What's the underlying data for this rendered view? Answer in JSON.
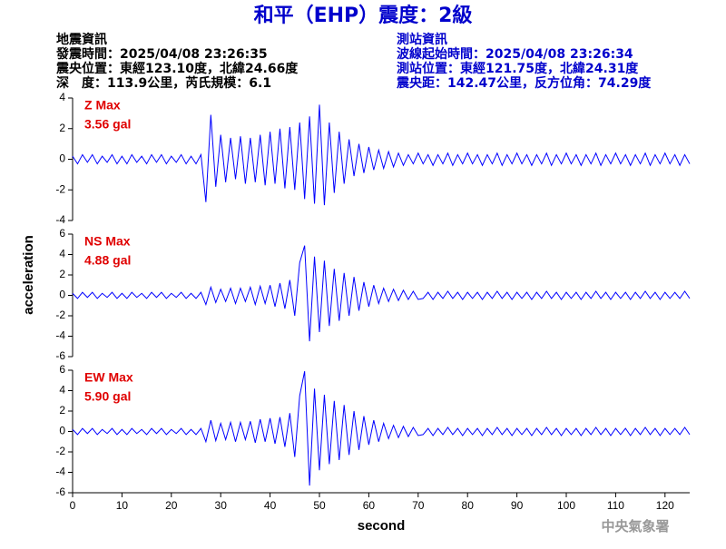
{
  "title": "和平（EHP）震度：2級",
  "info_left": [
    "地震資訊",
    "發震時間：2025/04/08 23:26:35",
    "震央位置：東經123.10度，北緯24.66度",
    "深　度：113.9公里，芮氏規模：6.1"
  ],
  "info_right": [
    "測站資訊",
    "波線起始時間：2025/04/08 23:26:34",
    "測站位置：東經121.75度，北緯24.31度",
    "震央距：142.47公里，反方位角：74.29度"
  ],
  "ylabel": "acceleration",
  "footer": "中央氣象署",
  "chart_data": [
    {
      "type": "line",
      "annotations": [
        "Z Max",
        "3.56 gal"
      ],
      "color": "#0000ff",
      "annotation_color": "#e00000",
      "xlim": [
        0,
        125
      ],
      "ylim": [
        -4,
        4
      ],
      "yticks": [
        -4,
        -2,
        0,
        2,
        4
      ],
      "x": [
        0,
        1,
        2,
        3,
        4,
        5,
        6,
        7,
        8,
        9,
        10,
        11,
        12,
        13,
        14,
        15,
        16,
        17,
        18,
        19,
        20,
        21,
        22,
        23,
        24,
        25,
        26,
        27,
        28,
        29,
        30,
        31,
        32,
        33,
        34,
        35,
        36,
        37,
        38,
        39,
        40,
        41,
        42,
        43,
        44,
        45,
        46,
        47,
        48,
        49,
        50,
        51,
        52,
        53,
        54,
        55,
        56,
        57,
        58,
        59,
        60,
        61,
        62,
        63,
        64,
        65,
        66,
        67,
        68,
        69,
        70,
        71,
        72,
        73,
        74,
        75,
        76,
        77,
        78,
        79,
        80,
        81,
        82,
        83,
        84,
        85,
        86,
        87,
        88,
        89,
        90,
        91,
        92,
        93,
        94,
        95,
        96,
        97,
        98,
        99,
        100,
        101,
        102,
        103,
        104,
        105,
        106,
        107,
        108,
        109,
        110,
        111,
        112,
        113,
        114,
        115,
        116,
        117,
        118,
        119,
        120,
        121,
        122,
        123,
        124,
        125
      ],
      "values": [
        0.2,
        -0.3,
        0.3,
        -0.2,
        0.3,
        -0.3,
        0.2,
        -0.2,
        0.3,
        -0.3,
        0.2,
        -0.3,
        0.3,
        -0.2,
        0.2,
        -0.3,
        0.3,
        -0.2,
        0.3,
        -0.3,
        0.2,
        -0.2,
        0.3,
        -0.3,
        0.2,
        -0.3,
        0.3,
        -2.8,
        2.9,
        -1.8,
        1.6,
        -1.5,
        1.4,
        -1.3,
        1.5,
        -1.6,
        1.4,
        -1.5,
        1.6,
        -1.7,
        1.8,
        -1.6,
        2.0,
        -1.9,
        2.1,
        -2.0,
        2.4,
        -2.6,
        2.8,
        -2.9,
        3.56,
        -3.0,
        2.4,
        -2.2,
        1.8,
        -1.6,
        1.3,
        -1.1,
        1.0,
        -0.9,
        0.8,
        -0.7,
        0.6,
        -0.6,
        0.5,
        -0.5,
        0.4,
        -0.4,
        0.3,
        -0.3,
        0.4,
        -0.3,
        0.3,
        -0.4,
        0.3,
        -0.3,
        0.4,
        -0.4,
        0.3,
        -0.3,
        0.4,
        -0.3,
        0.3,
        -0.4,
        0.3,
        -0.3,
        0.4,
        -0.4,
        0.3,
        -0.3,
        0.4,
        -0.3,
        0.3,
        -0.4,
        0.3,
        -0.3,
        0.4,
        -0.4,
        0.3,
        -0.3,
        0.4,
        -0.3,
        0.3,
        -0.4,
        0.3,
        -0.3,
        0.4,
        -0.4,
        0.3,
        -0.3,
        0.4,
        -0.3,
        0.3,
        -0.4,
        0.3,
        -0.3,
        0.4,
        -0.4,
        0.3,
        -0.3,
        0.4,
        -0.3,
        0.3,
        -0.4,
        0.3,
        -0.3
      ]
    },
    {
      "type": "line",
      "annotations": [
        "NS Max",
        "4.88 gal"
      ],
      "color": "#0000ff",
      "annotation_color": "#e00000",
      "xlim": [
        0,
        125
      ],
      "ylim": [
        -6,
        6
      ],
      "yticks": [
        -6,
        -4,
        -2,
        0,
        2,
        4,
        6
      ],
      "x": [
        0,
        1,
        2,
        3,
        4,
        5,
        6,
        7,
        8,
        9,
        10,
        11,
        12,
        13,
        14,
        15,
        16,
        17,
        18,
        19,
        20,
        21,
        22,
        23,
        24,
        25,
        26,
        27,
        28,
        29,
        30,
        31,
        32,
        33,
        34,
        35,
        36,
        37,
        38,
        39,
        40,
        41,
        42,
        43,
        44,
        45,
        46,
        47,
        48,
        49,
        50,
        51,
        52,
        53,
        54,
        55,
        56,
        57,
        58,
        59,
        60,
        61,
        62,
        63,
        64,
        65,
        66,
        67,
        68,
        69,
        70,
        71,
        72,
        73,
        74,
        75,
        76,
        77,
        78,
        79,
        80,
        81,
        82,
        83,
        84,
        85,
        86,
        87,
        88,
        89,
        90,
        91,
        92,
        93,
        94,
        95,
        96,
        97,
        98,
        99,
        100,
        101,
        102,
        103,
        104,
        105,
        106,
        107,
        108,
        109,
        110,
        111,
        112,
        113,
        114,
        115,
        116,
        117,
        118,
        119,
        120,
        121,
        122,
        123,
        124,
        125
      ],
      "values": [
        0.2,
        -0.3,
        0.3,
        -0.2,
        0.3,
        -0.3,
        0.2,
        -0.2,
        0.3,
        -0.3,
        0.2,
        -0.3,
        0.3,
        -0.2,
        0.2,
        -0.3,
        0.3,
        -0.2,
        0.3,
        -0.3,
        0.2,
        -0.2,
        0.3,
        -0.3,
        0.2,
        -0.3,
        0.3,
        -0.9,
        0.8,
        -0.7,
        0.6,
        -0.6,
        0.7,
        -0.8,
        0.7,
        -0.6,
        0.8,
        -0.9,
        0.9,
        -0.8,
        1.0,
        -1.1,
        1.2,
        -1.3,
        1.5,
        -2.0,
        3.2,
        4.88,
        -4.5,
        3.8,
        -3.6,
        3.4,
        -3.0,
        2.6,
        -2.5,
        2.2,
        -2.0,
        1.8,
        -1.5,
        1.3,
        -1.1,
        1.0,
        -0.8,
        0.7,
        -0.6,
        0.6,
        -0.5,
        0.5,
        -0.4,
        0.4,
        -0.4,
        -0.3,
        0.3,
        -0.4,
        0.3,
        -0.3,
        0.4,
        -0.3,
        0.3,
        -0.4,
        0.3,
        -0.3,
        0.3,
        -0.4,
        0.3,
        -0.3,
        0.4,
        -0.3,
        0.3,
        -0.4,
        0.3,
        -0.3,
        0.3,
        -0.4,
        0.3,
        -0.3,
        0.4,
        -0.3,
        0.3,
        -0.4,
        0.3,
        -0.3,
        0.3,
        -0.4,
        0.3,
        -0.3,
        0.4,
        -0.3,
        0.3,
        -0.4,
        0.3,
        -0.3,
        0.3,
        -0.4,
        0.3,
        -0.3,
        0.4,
        -0.3,
        0.3,
        -0.4,
        0.3,
        -0.3,
        0.3,
        -0.3,
        0.4,
        -0.3
      ]
    },
    {
      "type": "line",
      "annotations": [
        "EW Max",
        "5.90 gal"
      ],
      "color": "#0000ff",
      "annotation_color": "#e00000",
      "xlabel": "second",
      "xlim": [
        0,
        125
      ],
      "xticks": [
        0,
        10,
        20,
        30,
        40,
        50,
        60,
        70,
        80,
        90,
        100,
        110,
        120
      ],
      "ylim": [
        -6,
        6
      ],
      "yticks": [
        -6,
        -4,
        -2,
        0,
        2,
        4,
        6
      ],
      "x": [
        0,
        1,
        2,
        3,
        4,
        5,
        6,
        7,
        8,
        9,
        10,
        11,
        12,
        13,
        14,
        15,
        16,
        17,
        18,
        19,
        20,
        21,
        22,
        23,
        24,
        25,
        26,
        27,
        28,
        29,
        30,
        31,
        32,
        33,
        34,
        35,
        36,
        37,
        38,
        39,
        40,
        41,
        42,
        43,
        44,
        45,
        46,
        47,
        48,
        49,
        50,
        51,
        52,
        53,
        54,
        55,
        56,
        57,
        58,
        59,
        60,
        61,
        62,
        63,
        64,
        65,
        66,
        67,
        68,
        69,
        70,
        71,
        72,
        73,
        74,
        75,
        76,
        77,
        78,
        79,
        80,
        81,
        82,
        83,
        84,
        85,
        86,
        87,
        88,
        89,
        90,
        91,
        92,
        93,
        94,
        95,
        96,
        97,
        98,
        99,
        100,
        101,
        102,
        103,
        104,
        105,
        106,
        107,
        108,
        109,
        110,
        111,
        112,
        113,
        114,
        115,
        116,
        117,
        118,
        119,
        120,
        121,
        122,
        123,
        124,
        125
      ],
      "values": [
        0.2,
        -0.3,
        0.3,
        -0.2,
        0.3,
        -0.3,
        0.2,
        -0.2,
        0.3,
        -0.3,
        0.2,
        -0.3,
        0.3,
        -0.2,
        0.2,
        -0.3,
        0.3,
        -0.2,
        0.3,
        -0.3,
        0.2,
        -0.2,
        0.3,
        -0.3,
        0.2,
        -0.3,
        0.3,
        -1.0,
        1.1,
        -0.9,
        0.8,
        -0.8,
        0.9,
        -1.0,
        0.9,
        -0.8,
        1.0,
        -1.1,
        1.2,
        -1.0,
        1.3,
        -1.2,
        1.4,
        -1.5,
        1.8,
        -2.5,
        3.5,
        5.9,
        -5.3,
        4.2,
        -3.8,
        3.6,
        -3.2,
        3.0,
        -2.8,
        2.6,
        -2.3,
        2.0,
        -1.8,
        1.5,
        -1.3,
        1.1,
        -1.0,
        0.8,
        -0.7,
        0.6,
        -0.6,
        0.5,
        -0.5,
        0.4,
        -0.4,
        -0.3,
        0.3,
        -0.4,
        0.3,
        -0.3,
        0.4,
        -0.3,
        0.3,
        -0.4,
        0.3,
        -0.3,
        0.3,
        -0.4,
        0.3,
        -0.3,
        0.4,
        -0.3,
        0.3,
        -0.4,
        0.3,
        -0.3,
        0.3,
        -0.4,
        0.3,
        -0.3,
        0.4,
        -0.3,
        0.3,
        -0.4,
        0.3,
        -0.3,
        0.3,
        -0.4,
        0.3,
        -0.3,
        0.4,
        -0.3,
        0.3,
        -0.4,
        0.3,
        -0.3,
        0.3,
        -0.4,
        0.3,
        -0.3,
        0.4,
        -0.3,
        0.3,
        -0.4,
        0.3,
        -0.3,
        0.3,
        -0.3,
        0.4,
        -0.3
      ]
    }
  ]
}
